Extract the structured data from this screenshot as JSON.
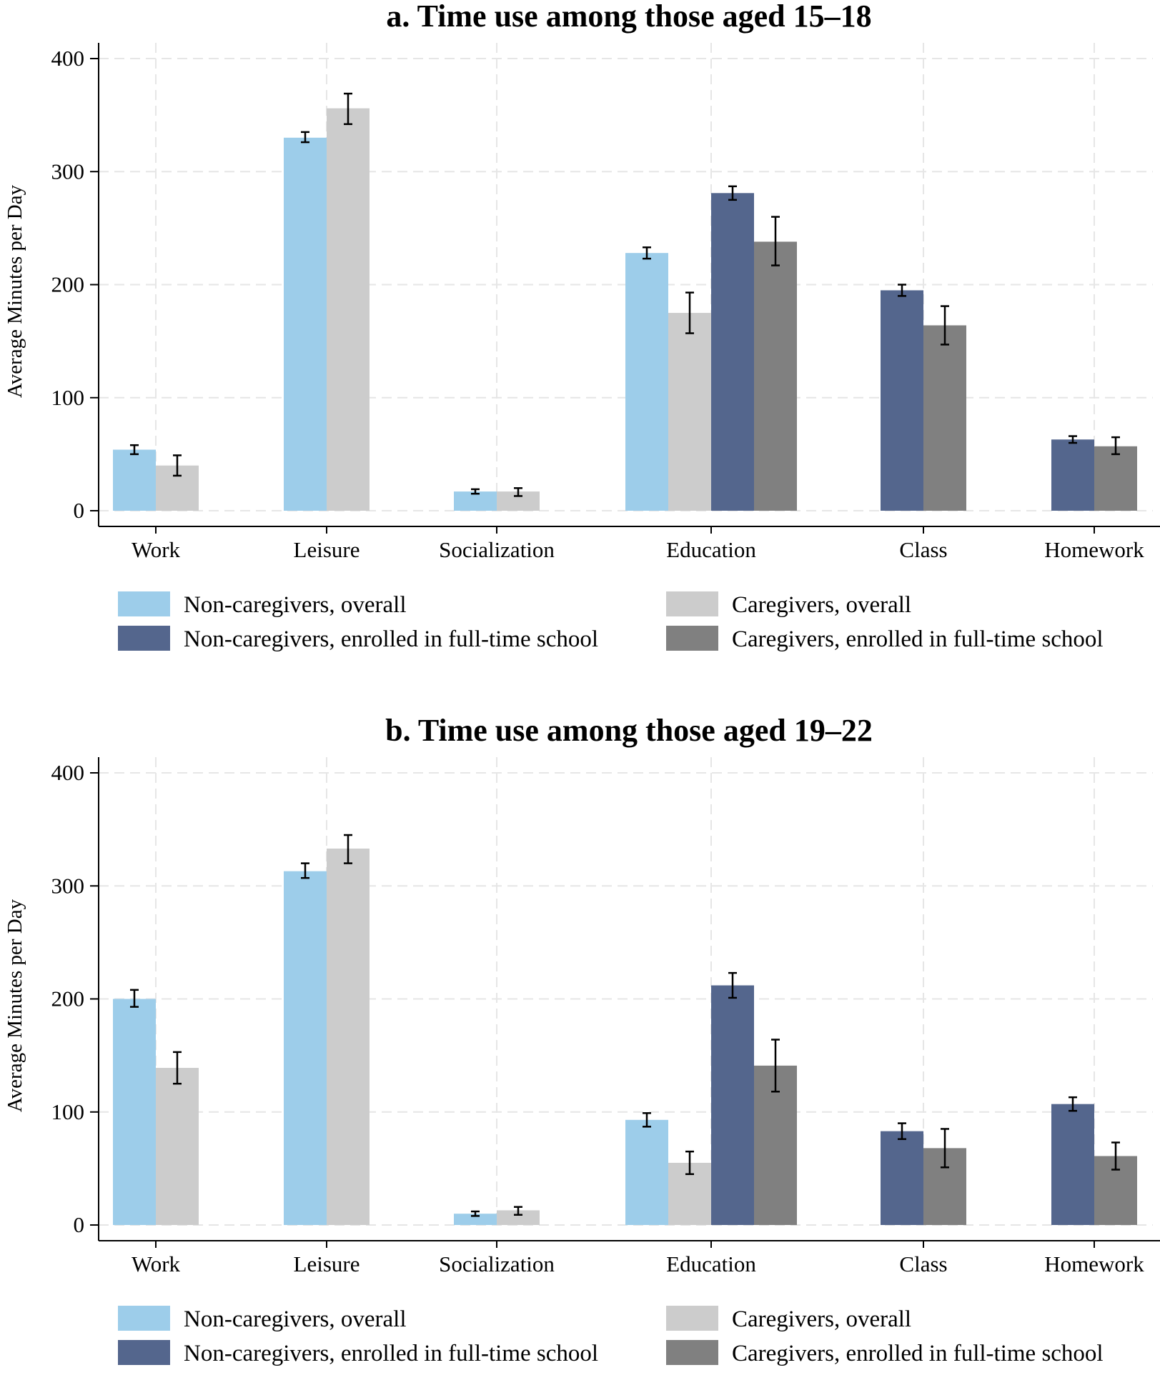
{
  "chart_data": [
    {
      "type": "bar",
      "title": "a. Time use among those aged 15–18",
      "xlabel": "",
      "ylabel": "Average Minutes per Day",
      "ylim": [
        0,
        400
      ],
      "yticks": [
        0,
        100,
        200,
        300,
        400
      ],
      "grid": true,
      "categories": [
        "Work",
        "Leisure",
        "Socialization",
        "Education",
        "Class",
        "Homework"
      ],
      "series": [
        {
          "name": "Non-caregivers, overall",
          "color": "#9dcdea",
          "values": [
            54,
            330,
            17,
            228,
            null,
            null
          ],
          "ci_low": [
            50,
            326,
            15,
            223,
            null,
            null
          ],
          "ci_high": [
            58,
            335,
            19,
            233,
            null,
            null
          ]
        },
        {
          "name": "Caregivers, overall",
          "color": "#cccccc",
          "values": [
            40,
            356,
            17,
            175,
            null,
            null
          ],
          "ci_low": [
            31,
            342,
            13,
            157,
            null,
            null
          ],
          "ci_high": [
            49,
            369,
            20,
            193,
            null,
            null
          ]
        },
        {
          "name": "Non-caregivers, enrolled in full-time school",
          "color": "#54668d",
          "values": [
            null,
            null,
            null,
            281,
            195,
            63
          ],
          "ci_low": [
            null,
            null,
            null,
            275,
            190,
            60
          ],
          "ci_high": [
            null,
            null,
            null,
            287,
            200,
            66
          ]
        },
        {
          "name": "Caregivers, enrolled in full-time school",
          "color": "#808080",
          "values": [
            null,
            null,
            null,
            238,
            164,
            57
          ],
          "ci_low": [
            null,
            null,
            null,
            217,
            147,
            50
          ],
          "ci_high": [
            null,
            null,
            null,
            260,
            181,
            65
          ]
        }
      ],
      "legend_position": "bottom"
    },
    {
      "type": "bar",
      "title": "b. Time use among those aged 19–22",
      "xlabel": "",
      "ylabel": "Average Minutes per Day",
      "ylim": [
        0,
        400
      ],
      "yticks": [
        0,
        100,
        200,
        300,
        400
      ],
      "grid": true,
      "categories": [
        "Work",
        "Leisure",
        "Socialization",
        "Education",
        "Class",
        "Homework"
      ],
      "series": [
        {
          "name": "Non-caregivers, overall",
          "color": "#9dcdea",
          "values": [
            200,
            313,
            10,
            93,
            null,
            null
          ],
          "ci_low": [
            193,
            307,
            8,
            87,
            null,
            null
          ],
          "ci_high": [
            208,
            320,
            12,
            99,
            null,
            null
          ]
        },
        {
          "name": "Caregivers, overall",
          "color": "#cccccc",
          "values": [
            139,
            333,
            13,
            55,
            null,
            null
          ],
          "ci_low": [
            125,
            320,
            9,
            45,
            null,
            null
          ],
          "ci_high": [
            153,
            345,
            16,
            65,
            null,
            null
          ]
        },
        {
          "name": "Non-caregivers, enrolled in full-time school",
          "color": "#54668d",
          "values": [
            null,
            null,
            null,
            212,
            83,
            107
          ],
          "ci_low": [
            null,
            null,
            null,
            201,
            76,
            101
          ],
          "ci_high": [
            null,
            null,
            null,
            223,
            90,
            113
          ]
        },
        {
          "name": "Caregivers, enrolled in full-time school",
          "color": "#808080",
          "values": [
            null,
            null,
            null,
            141,
            68,
            61
          ],
          "ci_low": [
            null,
            null,
            null,
            118,
            51,
            49
          ],
          "ci_high": [
            null,
            null,
            null,
            164,
            85,
            73
          ]
        }
      ],
      "legend_position": "bottom"
    }
  ]
}
